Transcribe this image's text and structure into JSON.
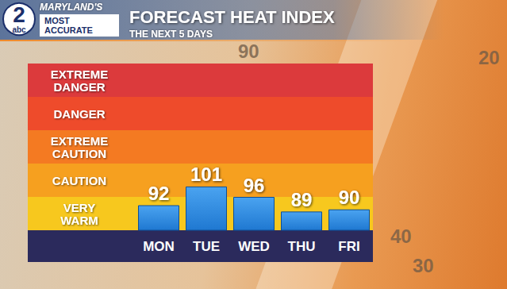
{
  "logo": {
    "channel": "2",
    "network": "abc",
    "station": "MARYLAND'S",
    "slogan": [
      "MOST",
      "ACCURATE"
    ]
  },
  "background_thermometer": {
    "labels": [
      "90",
      "40",
      "30",
      "20"
    ]
  },
  "chart_data": {
    "type": "bar",
    "title": "FORECAST HEAT INDEX",
    "subtitle": "THE NEXT 5 DAYS",
    "categories": [
      "MON",
      "TUE",
      "WED",
      "THU",
      "FRI"
    ],
    "values": [
      92,
      101,
      96,
      89,
      90
    ],
    "color": "#1f78d1",
    "ylim": [
      80,
      160
    ],
    "yticks": [
      80,
      96,
      112,
      128,
      144,
      160
    ],
    "tick_labels": "x",
    "data_labels": true,
    "grid": false,
    "bands": [
      {
        "label": "VERY WARM",
        "color": "#f7c81e"
      },
      {
        "label": "CAUTION",
        "color": "#f6a01f"
      },
      {
        "label": "EXTREME CAUTION",
        "color": "#f47a22"
      },
      {
        "label": "DANGER",
        "color": "#ee4b2b"
      },
      {
        "label": "EXTREME DANGER",
        "color": "#dc3a3c"
      }
    ]
  }
}
